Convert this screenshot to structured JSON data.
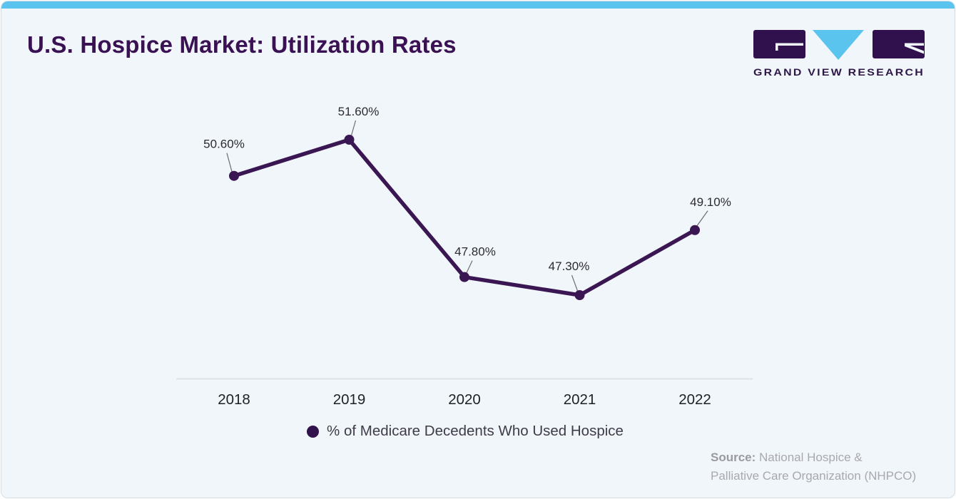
{
  "header": {
    "title": "U.S. Hospice Market: Utilization Rates"
  },
  "logo": {
    "brand_name": "GRAND VIEW RESEARCH"
  },
  "chart_data": {
    "type": "line",
    "title": "U.S. Hospice Market: Utilization Rates",
    "x": [
      "2018",
      "2019",
      "2020",
      "2021",
      "2022"
    ],
    "series": [
      {
        "name": "% of Medicare Decedents Who Used Hospice",
        "values": [
          50.6,
          51.6,
          47.8,
          47.3,
          49.1
        ],
        "point_labels": [
          "50.60%",
          "51.60%",
          "47.80%",
          "47.30%",
          "49.10%"
        ],
        "color": "#3a1752"
      }
    ],
    "ylim": [
      46.5,
      52.5
    ],
    "grid": false,
    "x_axis_line": true,
    "legend_position": "bottom",
    "data_labels_shown": true
  },
  "legend": {
    "marker_color": "#32124c"
  },
  "source": {
    "prefix": "Source:",
    "text_line1": "National Hospice &",
    "text_line2": "Palliative Care Organization (NHPCO)"
  },
  "colors": {
    "accent_bar": "#5ac4ee",
    "title": "#3a1153",
    "line": "#3a1752",
    "card_background": "#f1f6fa",
    "axis_line": "#dce2e8",
    "leader_line": "#6e6e73"
  }
}
